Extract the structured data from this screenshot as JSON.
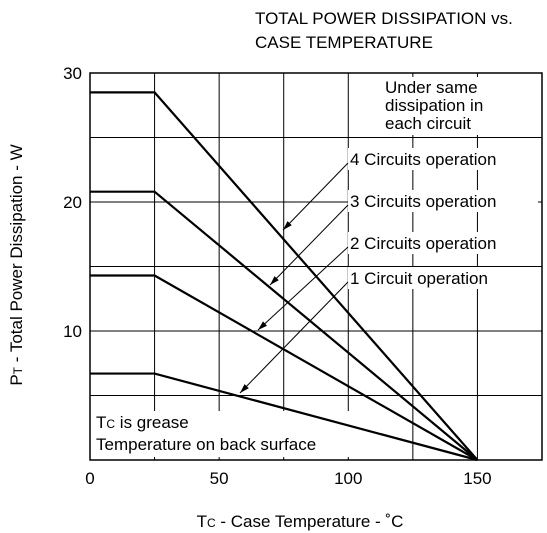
{
  "chart_data": {
    "type": "line",
    "title": [
      "TOTAL POWER DISSIPATION vs.",
      "CASE TEMPERATURE"
    ],
    "ylabel": {
      "main": "P",
      "sub": "T",
      "rest": " - Total Power Dissipation - W"
    },
    "xlabel": {
      "main": "T",
      "sub": "C",
      "rest": " - Case Temperature - ˚C"
    },
    "x": [
      0,
      25,
      150
    ],
    "series": [
      {
        "name": "4 Circuits operation",
        "color": "#000000",
        "values": [
          28.5,
          28.5,
          0
        ]
      },
      {
        "name": "3 Circuits operation",
        "color": "#000000",
        "values": [
          20.8,
          20.8,
          0
        ]
      },
      {
        "name": "2 Circuits operation",
        "color": "#000000",
        "values": [
          14.3,
          14.3,
          0
        ]
      },
      {
        "name": "1 Circuit operation",
        "color": "#000000",
        "values": [
          6.7,
          6.7,
          0
        ]
      }
    ],
    "xlim": [
      0,
      175
    ],
    "ylim": [
      0,
      30
    ],
    "xticks": [
      0,
      50,
      100,
      150
    ],
    "yticks": [
      10,
      20,
      30
    ],
    "xgrid": [
      25,
      50,
      75,
      100,
      125,
      150
    ],
    "ygrid": [
      5,
      10,
      15,
      20,
      25
    ],
    "grid": true,
    "annotations": {
      "note": [
        "Under same",
        "dissipation in",
        "each circuit"
      ],
      "case": {
        "main": "T",
        "sub": "C",
        "rest": " is grease",
        "line2": "Temperature on back surface"
      }
    }
  }
}
